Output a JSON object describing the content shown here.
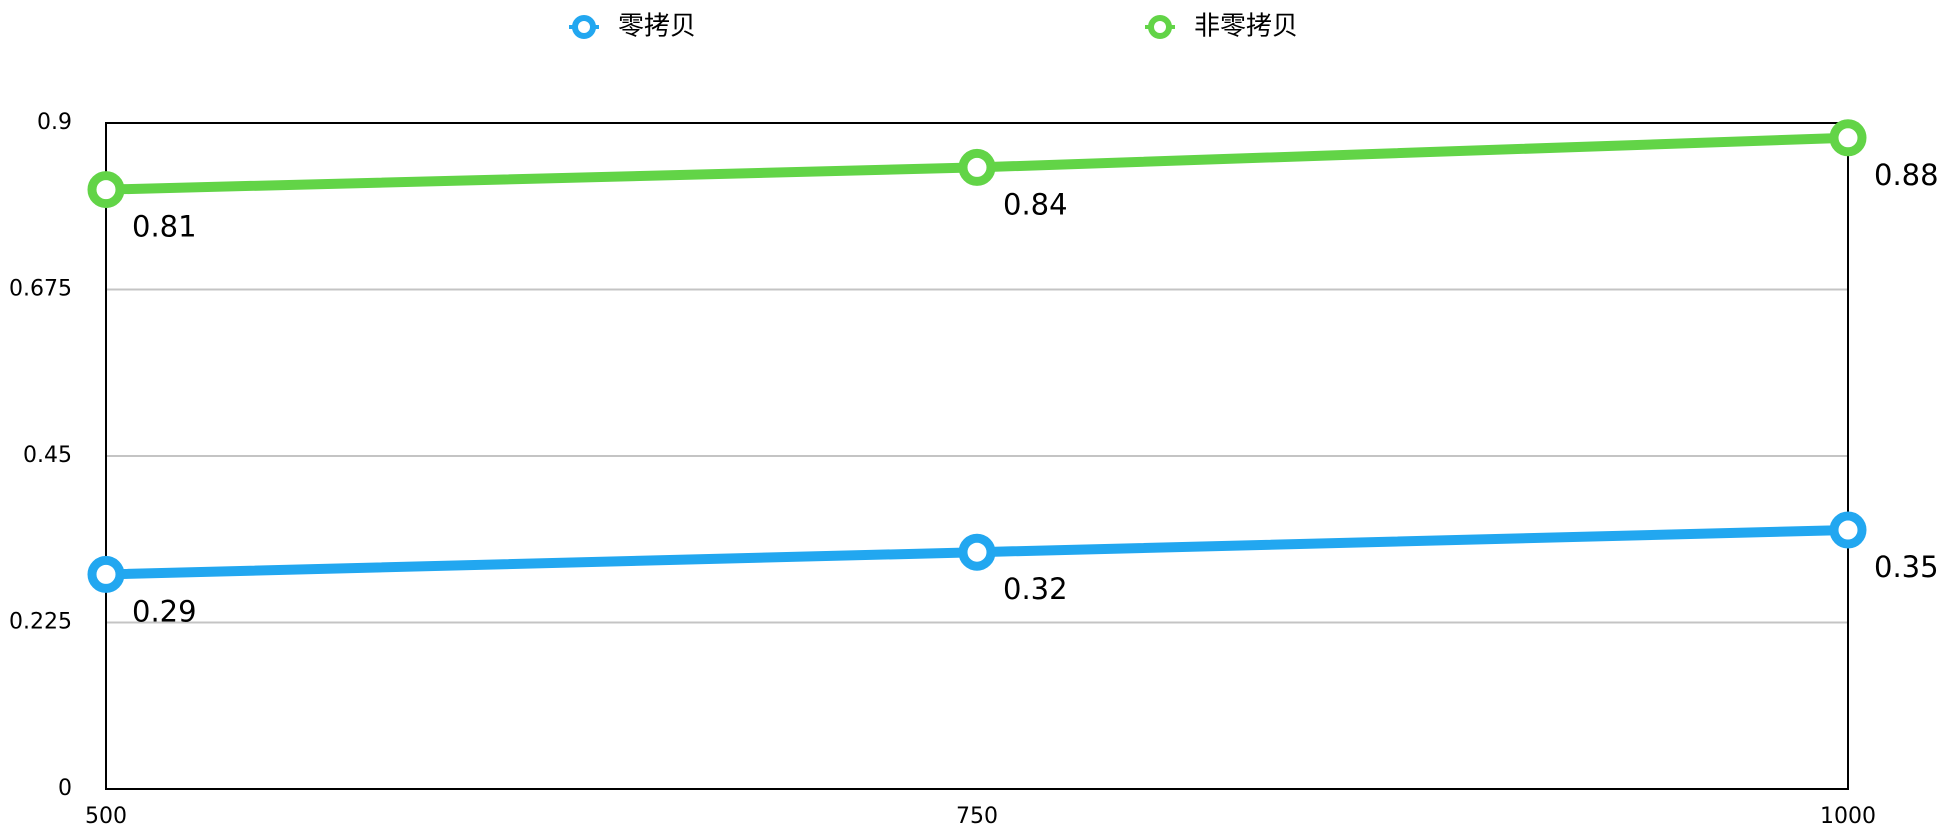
{
  "chart_data": {
    "type": "line",
    "x": [
      500,
      750,
      1000
    ],
    "x_tick_labels": [
      "500",
      "750",
      "1000"
    ],
    "y_tick_labels": [
      "0",
      "0.225",
      "0.45",
      "0.675",
      "0.9"
    ],
    "y_ticks": [
      0,
      0.225,
      0.45,
      0.675,
      0.9
    ],
    "ylim": [
      0,
      0.9
    ],
    "xlim": [
      500,
      1000
    ],
    "grid": "horizontal",
    "legend_position": "top",
    "series": [
      {
        "name": "零拷贝",
        "color": "#22a7f0",
        "values": [
          0.29,
          0.32,
          0.35
        ],
        "labels": [
          "0.29",
          "0.32",
          "0.35"
        ]
      },
      {
        "name": "非零拷贝",
        "color": "#62d447",
        "values": [
          0.81,
          0.84,
          0.88
        ],
        "labels": [
          "0.81",
          "0.84",
          "0.88"
        ]
      }
    ]
  }
}
